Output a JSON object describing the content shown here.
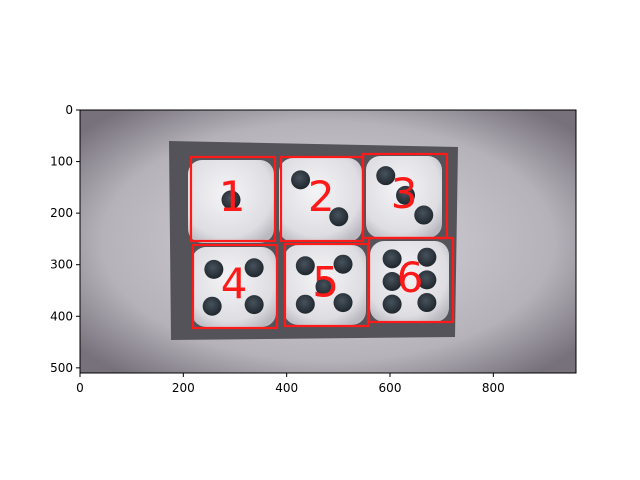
{
  "figure": {
    "x_ticks": [
      "0",
      "200",
      "400",
      "600",
      "800"
    ],
    "y_ticks": [
      "0",
      "100",
      "200",
      "300",
      "400",
      "500"
    ],
    "x_range": [
      0,
      960
    ],
    "y_range": [
      510,
      0
    ],
    "box_color": "#ff1a1a",
    "label_color": "#ff1a1a"
  },
  "detections": [
    {
      "label": "1",
      "pips": 1
    },
    {
      "label": "2",
      "pips": 2
    },
    {
      "label": "3",
      "pips": 3
    },
    {
      "label": "4",
      "pips": 4
    },
    {
      "label": "5",
      "pips": 5
    },
    {
      "label": "6",
      "pips": 6
    }
  ]
}
